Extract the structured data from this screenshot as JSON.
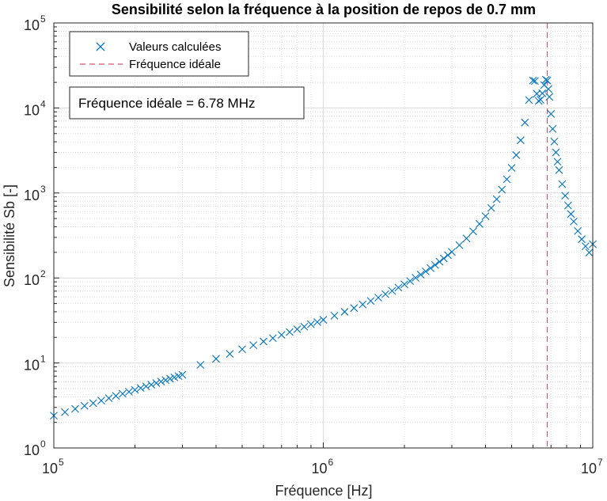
{
  "chart_data": {
    "type": "scatter",
    "title": "Sensibilité selon la fréquence à la position de repos de 0.7 mm",
    "xlabel": "Fréquence [Hz]",
    "ylabel": "Sensibilité Sb [-]",
    "xscale": "log",
    "yscale": "log",
    "xlim": [
      100000,
      10000000
    ],
    "ylim": [
      1,
      100000
    ],
    "x_ticks": [
      {
        "base": "10",
        "exp": "5"
      },
      {
        "base": "10",
        "exp": "6"
      },
      {
        "base": "10",
        "exp": "7"
      }
    ],
    "y_ticks": [
      {
        "base": "10",
        "exp": "0"
      },
      {
        "base": "10",
        "exp": "1"
      },
      {
        "base": "10",
        "exp": "2"
      },
      {
        "base": "10",
        "exp": "3"
      },
      {
        "base": "10",
        "exp": "4"
      },
      {
        "base": "10",
        "exp": "5"
      }
    ],
    "grid": true,
    "legend_position": "top-left",
    "series": [
      {
        "name": "Valeurs calculées",
        "marker": "x",
        "color": "#0072BD",
        "x": [
          100000,
          110000,
          120000,
          130000,
          140000,
          150000,
          160000,
          170000,
          180000,
          190000,
          200000,
          210000,
          220000,
          230000,
          240000,
          250000,
          260000,
          270000,
          280000,
          290000,
          300000,
          350000,
          400000,
          450000,
          500000,
          550000,
          600000,
          650000,
          700000,
          750000,
          800000,
          850000,
          900000,
          950000,
          1000000,
          1100000,
          1200000,
          1300000,
          1400000,
          1500000,
          1600000,
          1700000,
          1800000,
          1900000,
          2000000,
          2100000,
          2200000,
          2300000,
          2400000,
          2500000,
          2600000,
          2700000,
          2800000,
          2900000,
          3000000,
          3200000,
          3400000,
          3600000,
          3800000,
          4000000,
          4200000,
          4400000,
          4600000,
          4800000,
          5000000,
          5200000,
          5400000,
          5600000,
          5800000,
          6000000,
          6100000,
          6200000,
          6300000,
          6400000,
          6500000,
          6600000,
          6700000,
          6780000,
          6850000,
          6900000,
          7000000,
          7100000,
          7200000,
          7300000,
          7400000,
          7500000,
          7700000,
          7900000,
          8100000,
          8300000,
          8500000,
          8800000,
          9100000,
          9400000,
          9700000,
          10000000
        ],
        "y": [
          2.4,
          2.64,
          2.88,
          3.13,
          3.37,
          3.61,
          3.85,
          4.1,
          4.34,
          4.58,
          4.82,
          5.07,
          5.31,
          5.55,
          5.8,
          6.04,
          6.29,
          6.53,
          6.77,
          7.02,
          7.26,
          9.5,
          11.2,
          12.8,
          14.5,
          16.2,
          17.9,
          19.6,
          21.4,
          23.1,
          24.9,
          26.7,
          28.5,
          30.3,
          32.2,
          36,
          40,
          44.3,
          48.8,
          53.6,
          58.8,
          64.5,
          70.5,
          77.1,
          84.2,
          92,
          100.4,
          109.6,
          119.6,
          130.5,
          142.4,
          155.5,
          169.8,
          185.5,
          202.8,
          243,
          292,
          353,
          432,
          533,
          666,
          846,
          1094,
          1449,
          1973,
          2790,
          4170,
          6740,
          12400,
          21000,
          20800,
          14700,
          12100,
          12500,
          14900,
          18600,
          21500,
          21000,
          16700,
          13500,
          8520,
          5670,
          4020,
          3000,
          2330,
          1860,
          1270,
          928,
          712,
          565,
          461,
          357,
          286,
          236,
          199,
          250
        ]
      },
      {
        "name": "Fréquence idéale",
        "line": "dashed",
        "color": "#D95370",
        "x_value": 6780000
      }
    ],
    "annotations": [
      {
        "text": "Fréquence idéale = 6.78 MHz"
      }
    ]
  }
}
